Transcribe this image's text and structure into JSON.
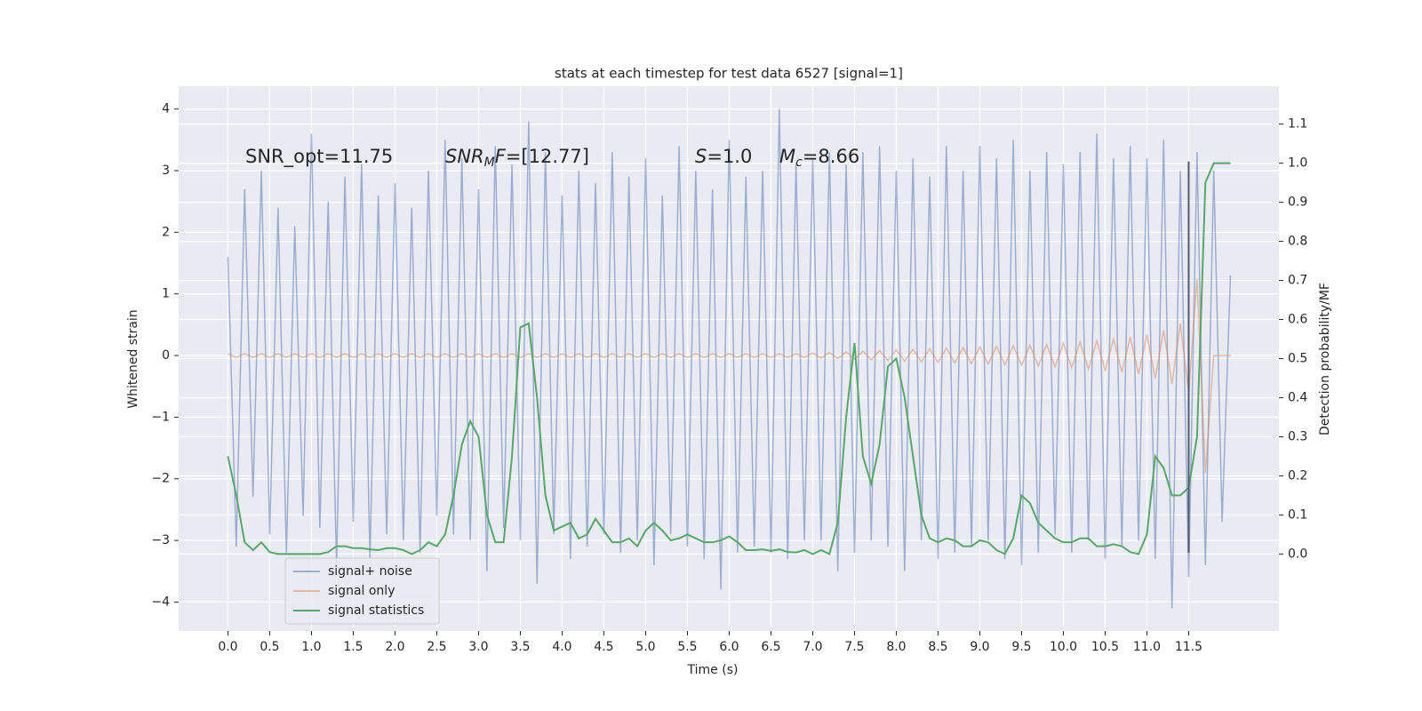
{
  "chart_data": {
    "type": "line",
    "title": "stats at each timestep for test data 6527 [signal=1]",
    "xlabel": "Time (s)",
    "ylabel": "Whitened strain",
    "y2label": "Detection probability/MF",
    "grid": true,
    "legend": "lower left",
    "xlim": [
      -0.59,
      12.58
    ],
    "ylim": [
      -4.47,
      4.37
    ],
    "y2lim": [
      -0.197,
      1.197
    ],
    "xticks": [
      {
        "value": 0,
        "label": "0.0"
      },
      0.5,
      {
        "value": 1,
        "label": "1.0"
      },
      1.5,
      {
        "value": 2,
        "label": "2.0"
      },
      2.5,
      {
        "value": 3,
        "label": "3.0"
      },
      3.5,
      {
        "value": 4,
        "label": "4.0"
      },
      4.5,
      {
        "value": 5,
        "label": "5.0"
      },
      5.5,
      {
        "value": 6,
        "label": "6.0"
      },
      6.5,
      {
        "value": 7,
        "label": "7.0"
      },
      7.5,
      {
        "value": 8,
        "label": "8.0"
      },
      8.5,
      {
        "value": 9,
        "label": "9.0"
      },
      9.5,
      {
        "value": 10,
        "label": "10.0"
      },
      10.5,
      {
        "value": 11,
        "label": "11.0"
      },
      11.5
    ],
    "yticks": [
      {
        "value": -4,
        "label": "−4"
      },
      {
        "value": -3,
        "label": "−3"
      },
      {
        "value": -2,
        "label": "−2"
      },
      {
        "value": -1,
        "label": "−1"
      },
      0,
      1,
      2,
      3,
      4
    ],
    "y2ticks": [
      {
        "value": 0,
        "label": "0.0"
      },
      0.1,
      0.2,
      0.3,
      0.4,
      0.5,
      0.6,
      0.7,
      0.8,
      0.9,
      {
        "value": 1,
        "label": "1.0"
      },
      1.1
    ],
    "x": [
      0.0,
      0.1,
      0.2,
      0.3,
      0.4,
      0.5,
      0.6,
      0.7,
      0.8,
      0.9,
      1.0,
      1.1,
      1.2,
      1.3,
      1.4,
      1.5,
      1.6,
      1.7,
      1.8,
      1.9,
      2.0,
      2.1,
      2.2,
      2.3,
      2.4,
      2.5,
      2.6,
      2.7,
      2.8,
      2.9,
      3.0,
      3.1,
      3.2,
      3.3,
      3.4,
      3.5,
      3.6,
      3.7,
      3.8,
      3.9,
      4.0,
      4.1,
      4.2,
      4.3,
      4.4,
      4.5,
      4.6,
      4.7,
      4.8,
      4.9,
      5.0,
      5.1,
      5.2,
      5.3,
      5.4,
      5.5,
      5.6,
      5.7,
      5.8,
      5.9,
      6.0,
      6.1,
      6.2,
      6.3,
      6.4,
      6.5,
      6.6,
      6.7,
      6.8,
      6.9,
      7.0,
      7.1,
      7.2,
      7.3,
      7.4,
      7.5,
      7.6,
      7.7,
      7.8,
      7.9,
      8.0,
      8.1,
      8.2,
      8.3,
      8.4,
      8.5,
      8.6,
      8.7,
      8.8,
      8.9,
      9.0,
      9.1,
      9.2,
      9.3,
      9.4,
      9.5,
      9.6,
      9.7,
      9.8,
      9.9,
      10.0,
      10.1,
      10.2,
      10.3,
      10.4,
      10.5,
      10.6,
      10.7,
      10.8,
      10.9,
      11.0,
      11.1,
      11.2,
      11.3,
      11.4,
      11.5,
      11.6,
      11.7,
      11.8,
      11.9,
      12.0
    ],
    "series": [
      {
        "name": "signal+ noise",
        "color": "#4c72b0",
        "alpha": 0.5,
        "values": [
          1.6,
          -3.1,
          2.7,
          -2.3,
          3.0,
          -2.9,
          2.4,
          -3.2,
          2.1,
          -2.6,
          3.6,
          -2.8,
          2.5,
          -3.4,
          2.9,
          -2.7,
          3.1,
          -3.3,
          2.6,
          -2.9,
          2.8,
          -3.0,
          2.4,
          -3.2,
          3.0,
          -2.6,
          3.5,
          -2.9,
          3.2,
          -3.0,
          2.7,
          -3.5,
          3.4,
          -2.8,
          3.1,
          -3.0,
          3.8,
          -3.7,
          3.3,
          -2.9,
          2.6,
          -3.3,
          3.0,
          -3.1,
          2.8,
          -2.9,
          3.3,
          -3.2,
          2.9,
          -3.0,
          3.2,
          -3.4,
          2.6,
          -2.9,
          3.4,
          -3.1,
          3.0,
          -3.3,
          2.7,
          -3.8,
          3.5,
          -3.2,
          2.9,
          -3.1,
          3.0,
          -3.2,
          4.0,
          -3.3,
          3.1,
          -3.0,
          3.2,
          -3.0,
          3.3,
          -3.5,
          3.1,
          -3.2,
          3.3,
          -3.0,
          3.4,
          -3.1,
          3.0,
          -3.5,
          3.2,
          -3.0,
          2.9,
          -3.3,
          3.4,
          -3.2,
          3.0,
          -3.1,
          3.4,
          -3.0,
          3.2,
          -3.3,
          3.5,
          -3.4,
          3.0,
          -3.2,
          3.3,
          -2.9,
          3.1,
          -3.2,
          3.3,
          -3.0,
          3.6,
          -3.3,
          3.2,
          -3.1,
          3.4,
          -3.0,
          3.2,
          -3.3,
          3.5,
          -4.1,
          3.0,
          -3.6,
          3.3,
          -3.4,
          3.0,
          -2.7,
          1.3
        ]
      },
      {
        "name": "signal only",
        "color": "#dd8452",
        "alpha": 0.5,
        "values": [
          0.03,
          -0.03,
          0.03,
          -0.03,
          0.03,
          -0.03,
          0.03,
          -0.03,
          0.03,
          -0.03,
          0.03,
          -0.03,
          0.03,
          -0.03,
          0.03,
          -0.03,
          0.03,
          -0.03,
          0.03,
          -0.03,
          0.03,
          -0.03,
          0.03,
          -0.03,
          0.03,
          -0.03,
          0.03,
          -0.03,
          0.03,
          -0.03,
          0.03,
          -0.03,
          0.03,
          -0.03,
          0.03,
          -0.03,
          0.03,
          -0.03,
          0.03,
          -0.03,
          0.03,
          -0.03,
          0.03,
          -0.03,
          0.03,
          -0.03,
          0.03,
          -0.03,
          0.03,
          -0.03,
          0.03,
          -0.03,
          0.03,
          -0.03,
          0.03,
          -0.03,
          0.03,
          -0.03,
          0.03,
          -0.03,
          0.03,
          -0.03,
          0.03,
          -0.03,
          0.03,
          -0.03,
          0.03,
          -0.03,
          0.03,
          -0.03,
          0.04,
          -0.04,
          0.05,
          -0.05,
          0.06,
          -0.06,
          0.07,
          -0.07,
          0.08,
          -0.08,
          0.09,
          -0.09,
          0.1,
          -0.1,
          0.11,
          -0.11,
          0.12,
          -0.12,
          0.13,
          -0.13,
          0.14,
          -0.14,
          0.15,
          -0.15,
          0.16,
          -0.16,
          0.17,
          -0.17,
          0.18,
          -0.18,
          0.2,
          -0.2,
          0.22,
          -0.22,
          0.24,
          -0.24,
          0.27,
          -0.27,
          0.3,
          -0.3,
          0.34,
          -0.37,
          0.41,
          -0.46,
          0.52,
          -0.6,
          1.25,
          -1.9,
          0.0,
          0.0,
          0.0
        ]
      },
      {
        "name": "signal statistics",
        "color": "#55a868",
        "alpha": 1,
        "axis": "y2",
        "values": [
          0.25,
          0.15,
          0.03,
          0.01,
          0.03,
          0.005,
          0.0,
          0.0,
          0.0,
          0.0,
          0.0,
          0.0,
          0.005,
          0.02,
          0.02,
          0.015,
          0.015,
          0.012,
          0.01,
          0.015,
          0.015,
          0.01,
          0.0,
          0.01,
          0.03,
          0.02,
          0.05,
          0.15,
          0.28,
          0.34,
          0.3,
          0.1,
          0.03,
          0.03,
          0.25,
          0.58,
          0.59,
          0.4,
          0.15,
          0.06,
          0.07,
          0.08,
          0.04,
          0.05,
          0.09,
          0.06,
          0.03,
          0.03,
          0.04,
          0.02,
          0.06,
          0.08,
          0.06,
          0.035,
          0.04,
          0.05,
          0.04,
          0.03,
          0.03,
          0.035,
          0.045,
          0.03,
          0.01,
          0.01,
          0.012,
          0.008,
          0.012,
          0.005,
          0.004,
          0.01,
          0.0,
          0.01,
          0.0,
          0.08,
          0.35,
          0.54,
          0.25,
          0.18,
          0.28,
          0.48,
          0.5,
          0.4,
          0.25,
          0.1,
          0.04,
          0.03,
          0.04,
          0.035,
          0.02,
          0.02,
          0.035,
          0.03,
          0.01,
          0.0,
          0.04,
          0.15,
          0.13,
          0.08,
          0.06,
          0.04,
          0.03,
          0.03,
          0.04,
          0.04,
          0.02,
          0.02,
          0.025,
          0.02,
          0.005,
          0.0,
          0.05,
          0.25,
          0.22,
          0.15,
          0.15,
          0.17,
          0.3,
          0.95,
          1.0,
          1.0,
          1.0
        ]
      }
    ],
    "vline": {
      "x": 11.5,
      "y": [
        -3.2,
        3.15
      ],
      "color": "#515a6e"
    },
    "annotations": [
      [
        {
          "text": "SNR_opt=11.75",
          "style": "normal"
        }
      ],
      [
        {
          "text": "SNR",
          "style": "italic"
        },
        {
          "text": "M",
          "style": "sub"
        },
        {
          "text": "F",
          "style": "italic"
        },
        {
          "text": "=[12.77]",
          "style": "normal"
        }
      ],
      [
        {
          "text": "S",
          "style": "italic"
        },
        {
          "text": "=1.0",
          "style": "normal"
        }
      ],
      [
        {
          "text": "M",
          "style": "italic"
        },
        {
          "text": "c",
          "style": "sub"
        },
        {
          "text": "=8.66",
          "style": "normal"
        }
      ]
    ]
  }
}
